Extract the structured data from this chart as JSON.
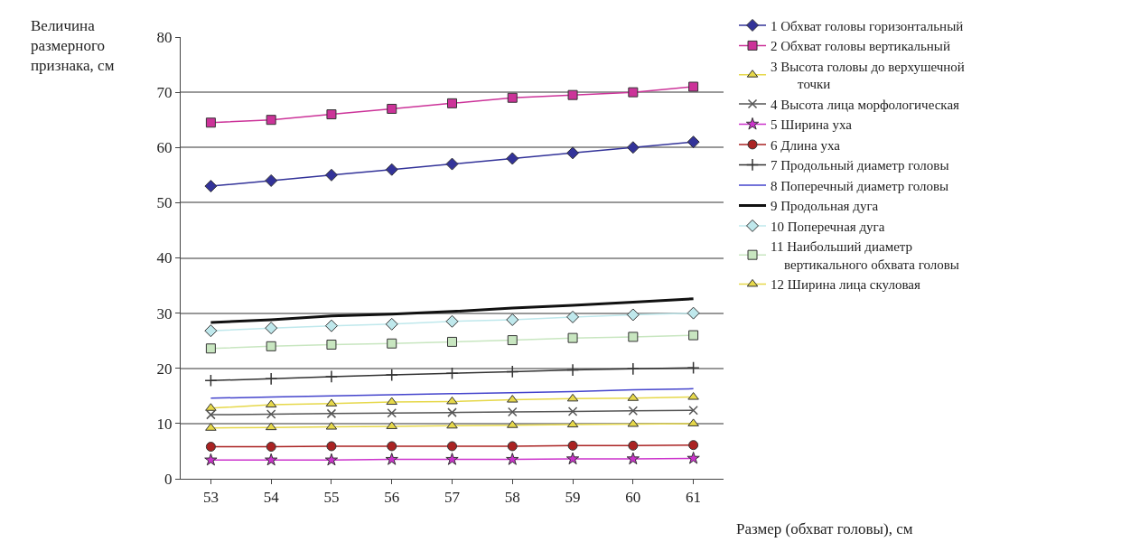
{
  "chart_data": {
    "type": "line",
    "ylabel": "Величина\nразмерного\nпризнака, см",
    "xlabel": "Размер (обхват головы), см",
    "categories": [
      "53",
      "54",
      "55",
      "56",
      "57",
      "58",
      "59",
      "60",
      "61"
    ],
    "ylim": [
      0,
      80
    ],
    "yticks": [
      0,
      10,
      20,
      30,
      40,
      50,
      60,
      70,
      80
    ],
    "grid": "y",
    "legend": "right",
    "series": [
      {
        "name": "1 Обхват головы горизонтальный",
        "color": "#333399",
        "marker": "diamond",
        "values": [
          53,
          54,
          55,
          56,
          57,
          58,
          59,
          60,
          61
        ]
      },
      {
        "name": "2 Обхват головы вертикальный",
        "color": "#cc3399",
        "marker": "square",
        "values": [
          64.5,
          65,
          66,
          67,
          68,
          69,
          69.5,
          70,
          71
        ]
      },
      {
        "name": "3 Высота головы до верхушечной\n        точки",
        "color": "#e6d84a",
        "marker": "triangle",
        "values": [
          9.2,
          9.3,
          9.4,
          9.5,
          9.6,
          9.7,
          9.8,
          9.9,
          10.0
        ]
      },
      {
        "name": "4 Высота лица морфологическая",
        "color": "#555555",
        "marker": "x",
        "values": [
          11.6,
          11.7,
          11.8,
          11.9,
          12.0,
          12.1,
          12.2,
          12.3,
          12.4
        ]
      },
      {
        "name": "5 Ширина уха",
        "color": "#cc33cc",
        "marker": "star",
        "values": [
          3.4,
          3.4,
          3.4,
          3.5,
          3.5,
          3.5,
          3.6,
          3.6,
          3.7
        ]
      },
      {
        "name": "6 Длина уха",
        "color": "#aa2222",
        "marker": "circle",
        "values": [
          5.8,
          5.8,
          5.9,
          5.9,
          5.9,
          5.9,
          6.0,
          6.0,
          6.1
        ]
      },
      {
        "name": "7 Продольный диаметр головы",
        "color": "#333333",
        "marker": "cross",
        "values": [
          17.8,
          18.1,
          18.5,
          18.8,
          19.1,
          19.4,
          19.7,
          19.9,
          20.1
        ]
      },
      {
        "name": "8 Поперечный диаметр головы",
        "color": "#4444cc",
        "marker": "none",
        "values": [
          14.6,
          14.8,
          15.0,
          15.2,
          15.4,
          15.6,
          15.8,
          16.1,
          16.3
        ]
      },
      {
        "name": "9 Продольная дуга",
        "color": "#111111",
        "marker": "none",
        "values": [
          28.3,
          28.8,
          29.5,
          29.8,
          30.3,
          30.9,
          31.4,
          32.0,
          32.6
        ]
      },
      {
        "name": "10 Поперечная дуга",
        "color": "#bfe8ec",
        "marker": "diamond",
        "values": [
          26.8,
          27.3,
          27.7,
          28.0,
          28.5,
          28.8,
          29.3,
          29.7,
          30.0
        ]
      },
      {
        "name": "11 Наибольший диаметр\n    вертикального обхвата головы",
        "color": "#c8e6c0",
        "marker": "square",
        "values": [
          23.6,
          24.0,
          24.3,
          24.5,
          24.8,
          25.1,
          25.5,
          25.7,
          26.0
        ]
      },
      {
        "name": "12 Ширина лица скуловая",
        "color": "#e6d84a",
        "marker": "triangle",
        "values": [
          12.8,
          13.4,
          13.6,
          13.9,
          14.0,
          14.3,
          14.5,
          14.6,
          14.8
        ]
      }
    ]
  }
}
